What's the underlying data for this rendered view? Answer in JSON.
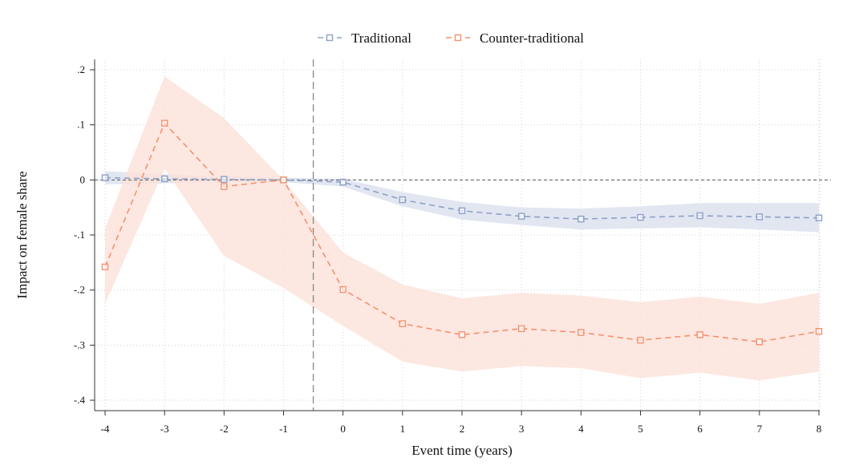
{
  "chart_data": {
    "type": "line",
    "title": "",
    "xlabel": "Event time (years)",
    "ylabel": "Impact on female share",
    "x": [
      -4,
      -3,
      -2,
      -1,
      0,
      1,
      2,
      3,
      4,
      5,
      6,
      7,
      8
    ],
    "x_tick_labels": [
      "-4",
      "-3",
      "-2",
      "-1",
      "0",
      "1",
      "2",
      "3",
      "4",
      "5",
      "6",
      "7",
      "8"
    ],
    "xlim": [
      -4,
      8
    ],
    "ylim": [
      -0.4,
      0.2
    ],
    "y_ticks": [
      0.2,
      0.1,
      0,
      -0.1,
      -0.2,
      -0.3,
      -0.4
    ],
    "y_tick_labels": [
      ".2",
      ".1",
      "0",
      "-.1",
      "-.2",
      "-.3",
      "-.4"
    ],
    "grid": true,
    "legend_position": "top-center",
    "reference_lines": {
      "y_zero": 0,
      "x_event": -0.5
    },
    "series": [
      {
        "name": "Traditional",
        "color": "#8ea1c8",
        "band_color": "#dfe5f0",
        "values": [
          0.004,
          0.002,
          0.001,
          0.0,
          -0.004,
          -0.036,
          -0.056,
          -0.066,
          -0.071,
          -0.068,
          -0.065,
          -0.067,
          -0.069
        ],
        "ci_low": [
          -0.008,
          -0.006,
          -0.004,
          -0.004,
          -0.012,
          -0.048,
          -0.072,
          -0.082,
          -0.09,
          -0.088,
          -0.086,
          -0.09,
          -0.095
        ],
        "ci_high": [
          0.016,
          0.01,
          0.006,
          0.004,
          0.002,
          -0.022,
          -0.04,
          -0.05,
          -0.052,
          -0.048,
          -0.042,
          -0.042,
          -0.042
        ]
      },
      {
        "name": "Counter-traditional",
        "color": "#f4926f",
        "band_color": "#fde1da",
        "values": [
          -0.158,
          0.103,
          -0.012,
          0.0,
          -0.199,
          -0.261,
          -0.281,
          -0.27,
          -0.277,
          -0.291,
          -0.281,
          -0.294,
          -0.275
        ],
        "ci_low": [
          -0.225,
          0.02,
          -0.138,
          -0.196,
          -0.265,
          -0.33,
          -0.348,
          -0.338,
          -0.342,
          -0.36,
          -0.35,
          -0.364,
          -0.348
        ],
        "ci_high": [
          -0.088,
          0.188,
          0.112,
          0.0,
          -0.132,
          -0.19,
          -0.215,
          -0.205,
          -0.21,
          -0.222,
          -0.212,
          -0.225,
          -0.205
        ]
      }
    ]
  }
}
